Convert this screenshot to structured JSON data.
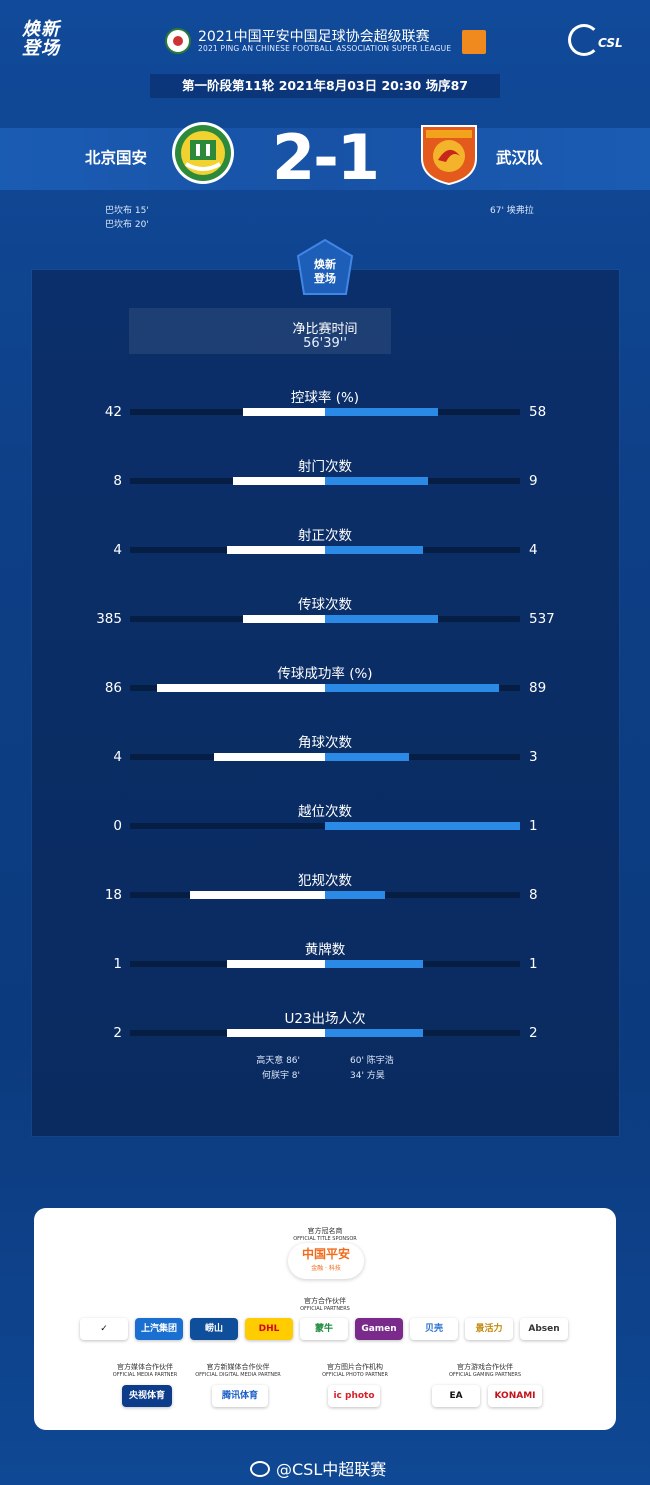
{
  "header": {
    "logo_text": "焕新登场",
    "title_cn": "2021中国平安中国足球协会超级联赛",
    "title_en": "2021 PING AN CHINESE FOOTBALL ASSOCIATION SUPER LEAGUE",
    "csl_logo": "CSL",
    "match_info": "第一阶段第11轮  2021年8月03日  20:30  场序87"
  },
  "match": {
    "home_team": "北京国安",
    "away_team": "武汉队",
    "score": "2-1",
    "home_goals": [
      "巴坎布  15'",
      "巴坎布  20'"
    ],
    "away_goals": [
      "67'  埃弗拉"
    ]
  },
  "stats_panel": {
    "emblem_text": "焕新登场",
    "time_label": "净比赛时间",
    "time_value": "56'39''",
    "stats": [
      {
        "label": "控球率 (%)",
        "home": "42",
        "away": "58",
        "home_ratio": 0.42,
        "away_ratio": 0.58
      },
      {
        "label": "射门次数",
        "home": "8",
        "away": "9",
        "home_ratio": 0.47,
        "away_ratio": 0.53
      },
      {
        "label": "射正次数",
        "home": "4",
        "away": "4",
        "home_ratio": 0.5,
        "away_ratio": 0.5
      },
      {
        "label": "传球次数",
        "home": "385",
        "away": "537",
        "home_ratio": 0.42,
        "away_ratio": 0.58
      },
      {
        "label": "传球成功率 (%)",
        "home": "86",
        "away": "89",
        "home_ratio": 0.86,
        "away_ratio": 0.89
      },
      {
        "label": "角球次数",
        "home": "4",
        "away": "3",
        "home_ratio": 0.57,
        "away_ratio": 0.43
      },
      {
        "label": "越位次数",
        "home": "0",
        "away": "1",
        "home_ratio": 0.0,
        "away_ratio": 1.0
      },
      {
        "label": "犯规次数",
        "home": "18",
        "away": "8",
        "home_ratio": 0.69,
        "away_ratio": 0.31
      },
      {
        "label": "黄牌数",
        "home": "1",
        "away": "1",
        "home_ratio": 0.5,
        "away_ratio": 0.5
      },
      {
        "label": "U23出场人次",
        "home": "2",
        "away": "2",
        "home_ratio": 0.5,
        "away_ratio": 0.5
      }
    ],
    "u23_home": [
      "高天意   86'",
      "何朕宇   8'"
    ],
    "u23_away": [
      "60'   陈宇浩",
      "34'   方昊"
    ]
  },
  "sponsors": {
    "title_sponsor_cn": "官方冠名商",
    "title_sponsor_en": "OFFICIAL TITLE SPONSOR",
    "title_sponsor_name": "中国平安",
    "title_sponsor_sub": "金融 · 科技",
    "partners_cn": "官方合作伙伴",
    "partners_en": "OFFICIAL PARTNERS",
    "partners": [
      {
        "name": "✓",
        "bg": "#ffffff",
        "fg": "#111111"
      },
      {
        "name": "上汽集团",
        "bg": "#1a6fd0",
        "fg": "#ffffff"
      },
      {
        "name": "崂山",
        "bg": "#0f4e9a",
        "fg": "#ffffff"
      },
      {
        "name": "DHL",
        "bg": "#ffcc00",
        "fg": "#d40511"
      },
      {
        "name": "蒙牛",
        "bg": "#ffffff",
        "fg": "#1a8a3a"
      },
      {
        "name": "Gamen",
        "bg": "#7a2a8a",
        "fg": "#ffffff"
      },
      {
        "name": "贝壳",
        "bg": "#ffffff",
        "fg": "#2a6fd0"
      },
      {
        "name": "景活力",
        "bg": "#ffffff",
        "fg": "#c08a10"
      },
      {
        "name": "Absen",
        "bg": "#ffffff",
        "fg": "#333333"
      }
    ],
    "media_cn": "官方媒体合作伙伴",
    "media_en": "OFFICIAL MEDIA PARTNER",
    "media_name": "央视体育",
    "digital_cn": "官方新媒体合作伙伴",
    "digital_en": "OFFICIAL DIGITAL MEDIA PARTNER",
    "digital_name": "腾讯体育",
    "photo_cn": "官方图片合作机构",
    "photo_en": "OFFICIAL PHOTO PARTNER",
    "photo_name": "ic photo",
    "gaming_cn": "官方游戏合作伙伴",
    "gaming_en": "OFFICIAL GAMING PARTNERS",
    "gaming_names": [
      "EA",
      "KONAMI"
    ]
  },
  "footer": {
    "weibo": "@CSL中超联赛"
  }
}
